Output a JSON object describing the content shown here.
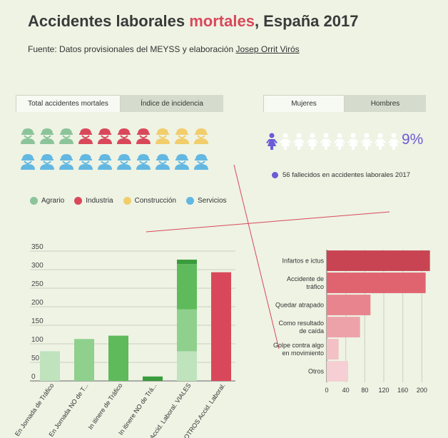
{
  "header": {
    "title_pre": "Accidentes laborales ",
    "title_highlight": "mortales",
    "title_post": ", España 2017",
    "source_pre": "Fuente: Datos provisionales del MEYSS y elaboración ",
    "source_link": "Josep Orrit Virós"
  },
  "tabs_left": [
    {
      "label": "Total accidentes mortales",
      "active": true
    },
    {
      "label": "Índice de incidencia",
      "active": false
    }
  ],
  "tabs_right": [
    {
      "label": "Mujeres",
      "active": true
    },
    {
      "label": "Hombres",
      "active": false
    }
  ],
  "sectors": [
    {
      "name": "Agrario",
      "color": "#8cc49a"
    },
    {
      "name": "Industria",
      "color": "#d9485a"
    },
    {
      "name": "Construcción",
      "color": "#f1cd6b"
    },
    {
      "name": "Servicios",
      "color": "#63b8e2"
    }
  ],
  "people_rows": [
    [
      "Agrario",
      "Agrario",
      "Agrario",
      "Industria",
      "Industria",
      "Industria",
      "Industria",
      "Construcción",
      "Construcción",
      "Construcción"
    ],
    [
      "Servicios",
      "Servicios",
      "Servicios",
      "Servicios",
      "Servicios",
      "Servicios",
      "Servicios",
      "Servicios",
      "Servicios",
      "Servicios"
    ]
  ],
  "women": {
    "percent_label": "9%",
    "filled": 1,
    "total": 10,
    "note": "56 fallecidos en accidentes laborales 2017",
    "color": "#6a5bd6"
  },
  "chart_data": [
    {
      "type": "bar",
      "stacked": true,
      "categories": [
        "En Jornada de Tráfico",
        "En Jornada NO de T...",
        "In itinere de Tráfico",
        "In itinere NO de Trá...",
        "Accid. Laboral. VIALES",
        "OTROS Accid. Laboral."
      ],
      "y_ticks": [
        "0",
        "50",
        "100",
        "150",
        "200",
        "250",
        "300",
        "350"
      ],
      "ylim": [
        0,
        350
      ],
      "grid": true,
      "stacks": [
        [
          {
            "value": 80,
            "color": "#bfe3bd"
          }
        ],
        [
          {
            "value": 113,
            "color": "#8fd08c"
          }
        ],
        [
          {
            "value": 122,
            "color": "#5fba5b"
          }
        ],
        [
          {
            "value": 12,
            "color": "#3a9b3c"
          }
        ],
        [
          {
            "value": 80,
            "color": "#bfe3bd"
          },
          {
            "value": 113,
            "color": "#8fd08c"
          },
          {
            "value": 122,
            "color": "#5fba5b"
          },
          {
            "value": 12,
            "color": "#3a9b3c"
          }
        ],
        [
          {
            "value": 293,
            "color": "#d9485a"
          }
        ]
      ]
    },
    {
      "type": "bar",
      "orientation": "horizontal",
      "categories": [
        [
          "Infartos e ictus"
        ],
        [
          "Accidente de",
          "tráfico"
        ],
        [
          "Quedar atrapado"
        ],
        [
          "Como resultado",
          "de caída"
        ],
        [
          "Golpe contra algo",
          "en movimiento"
        ],
        [
          "Otros"
        ]
      ],
      "values": [
        217,
        208,
        92,
        70,
        25,
        45
      ],
      "colors": [
        "#c84452",
        "#e06470",
        "#e8848e",
        "#eda2a9",
        "#f2c0c5",
        "#f5cfd3"
      ],
      "x_ticks": [
        "0",
        "40",
        "80",
        "120",
        "160",
        "200"
      ],
      "xlim": [
        0,
        222
      ],
      "grid": true
    }
  ]
}
